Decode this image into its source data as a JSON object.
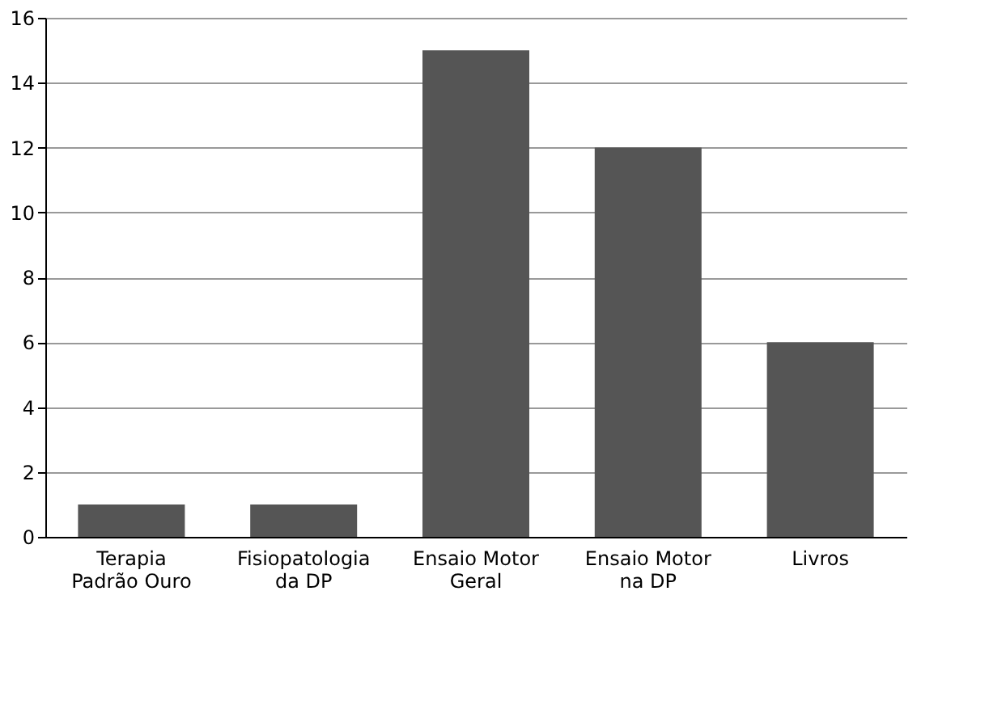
{
  "chart_data": {
    "type": "bar",
    "categories": [
      "Terapia\nPadrão Ouro",
      "Fisiopatologia\nda DP",
      "Ensaio Motor\nGeral",
      "Ensaio Motor\nna DP",
      "Livros"
    ],
    "values": [
      1,
      1,
      15,
      12,
      6
    ],
    "color": "#555555",
    "ylim": [
      0,
      16
    ],
    "yticks": [
      0,
      2,
      4,
      6,
      8,
      10,
      12,
      14,
      16
    ],
    "grid": "y"
  }
}
